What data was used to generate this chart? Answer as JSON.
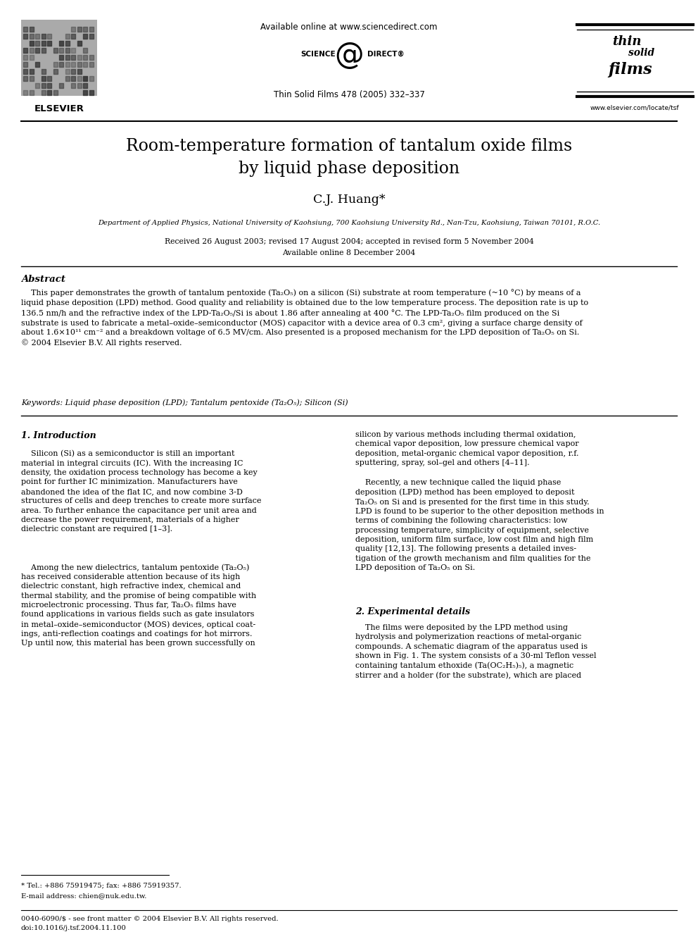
{
  "bg_color": "#ffffff",
  "available_online_text": "Available online at www.sciencedirect.com",
  "journal_text": "Thin Solid Films 478 (2005) 332–337",
  "elsevier_text": "ELSEVIER",
  "www_text": "www.elsevier.com/locate/tsf",
  "title_line1": "Room-temperature formation of tantalum oxide films",
  "title_line2": "by liquid phase deposition",
  "author": "C.J. Huang*",
  "affiliation": "Department of Applied Physics, National University of Kaohsiung, 700 Kaohsiung University Rd., Nan-Tzu, Kaohsiung, Taiwan 70101, R.O.C.",
  "dates_line1": "Received 26 August 2003; revised 17 August 2004; accepted in revised form 5 November 2004",
  "dates_line2": "Available online 8 December 2004",
  "abstract_heading": "Abstract",
  "abstract_text": "    This paper demonstrates the growth of tantalum pentoxide (Ta₂O₅) on a silicon (Si) substrate at room temperature (~10 °C) by means of a\nliquid phase deposition (LPD) method. Good quality and reliability is obtained due to the low temperature process. The deposition rate is up to\n136.5 nm/h and the refractive index of the LPD-Ta₂O₅/Si is about 1.86 after annealing at 400 °C. The LPD-Ta₂O₅ film produced on the Si\nsubstrate is used to fabricate a metal–oxide–semiconductor (MOS) capacitor with a device area of 0.3 cm², giving a surface charge density of\nabout 1.6×10¹¹ cm⁻² and a breakdown voltage of 6.5 MV/cm. Also presented is a proposed mechanism for the LPD deposition of Ta₂O₅ on Si.\n© 2004 Elsevier B.V. All rights reserved.",
  "keywords_text": "Keywords: Liquid phase deposition (LPD); Tantalum pentoxide (Ta₂O₅); Silicon (Si)",
  "section1_heading": "1. Introduction",
  "section1_col1_para1": "    Silicon (Si) as a semiconductor is still an important\nmaterial in integral circuits (IC). With the increasing IC\ndensity, the oxidation process technology has become a key\npoint for further IC minimization. Manufacturers have\nabandoned the idea of the flat IC, and now combine 3-D\nstructures of cells and deep trenches to create more surface\narea. To further enhance the capacitance per unit area and\ndecrease the power requirement, materials of a higher\ndielectric constant are required [1–3].",
  "section1_col1_para2": "    Among the new dielectrics, tantalum pentoxide (Ta₂O₅)\nhas received considerable attention because of its high\ndielectric constant, high refractive index, chemical and\nthermal stability, and the promise of being compatible with\nmicroelectronic processing. Thus far, Ta₂O₅ films have\nfound applications in various fields such as gate insulators\nin metal–oxide–semiconductor (MOS) devices, optical coat-\nings, anti-reflection coatings and coatings for hot mirrors.\nUp until now, this material has been grown successfully on",
  "section1_col2_para1": "silicon by various methods including thermal oxidation,\nchemical vapor deposition, low pressure chemical vapor\ndeposition, metal-organic chemical vapor deposition, r.f.\nsputtering, spray, sol–gel and others [4–11].",
  "section1_col2_para2": "    Recently, a new technique called the liquid phase\ndeposition (LPD) method has been employed to deposit\nTa₂O₅ on Si and is presented for the first time in this study.\nLPD is found to be superior to the other deposition methods in\nterms of combining the following characteristics: low\nprocessing temperature, simplicity of equipment, selective\ndeposition, uniform film surface, low cost film and high film\nquality [12,13]. The following presents a detailed inves-\ntigation of the growth mechanism and film qualities for the\nLPD deposition of Ta₂O₅ on Si.",
  "section2_heading": "2. Experimental details",
  "section2_col2_para1": "    The films were deposited by the LPD method using\nhydrolysis and polymerization reactions of metal-organic\ncompounds. A schematic diagram of the apparatus used is\nshown in Fig. 1. The system consists of a 30-ml Teflon vessel\ncontaining tantalum ethoxide (Ta(OC₂H₅)₅), a magnetic\nstirrer and a holder (for the substrate), which are placed",
  "footnote_star": "* Tel.: +886 75919475; fax: +886 75919357.",
  "footnote_email": "E-mail address: chien@nuk.edu.tw.",
  "footnote_bottom1": "0040-6090/$ - see front matter © 2004 Elsevier B.V. All rights reserved.",
  "footnote_bottom2": "doi:10.1016/j.tsf.2004.11.100"
}
